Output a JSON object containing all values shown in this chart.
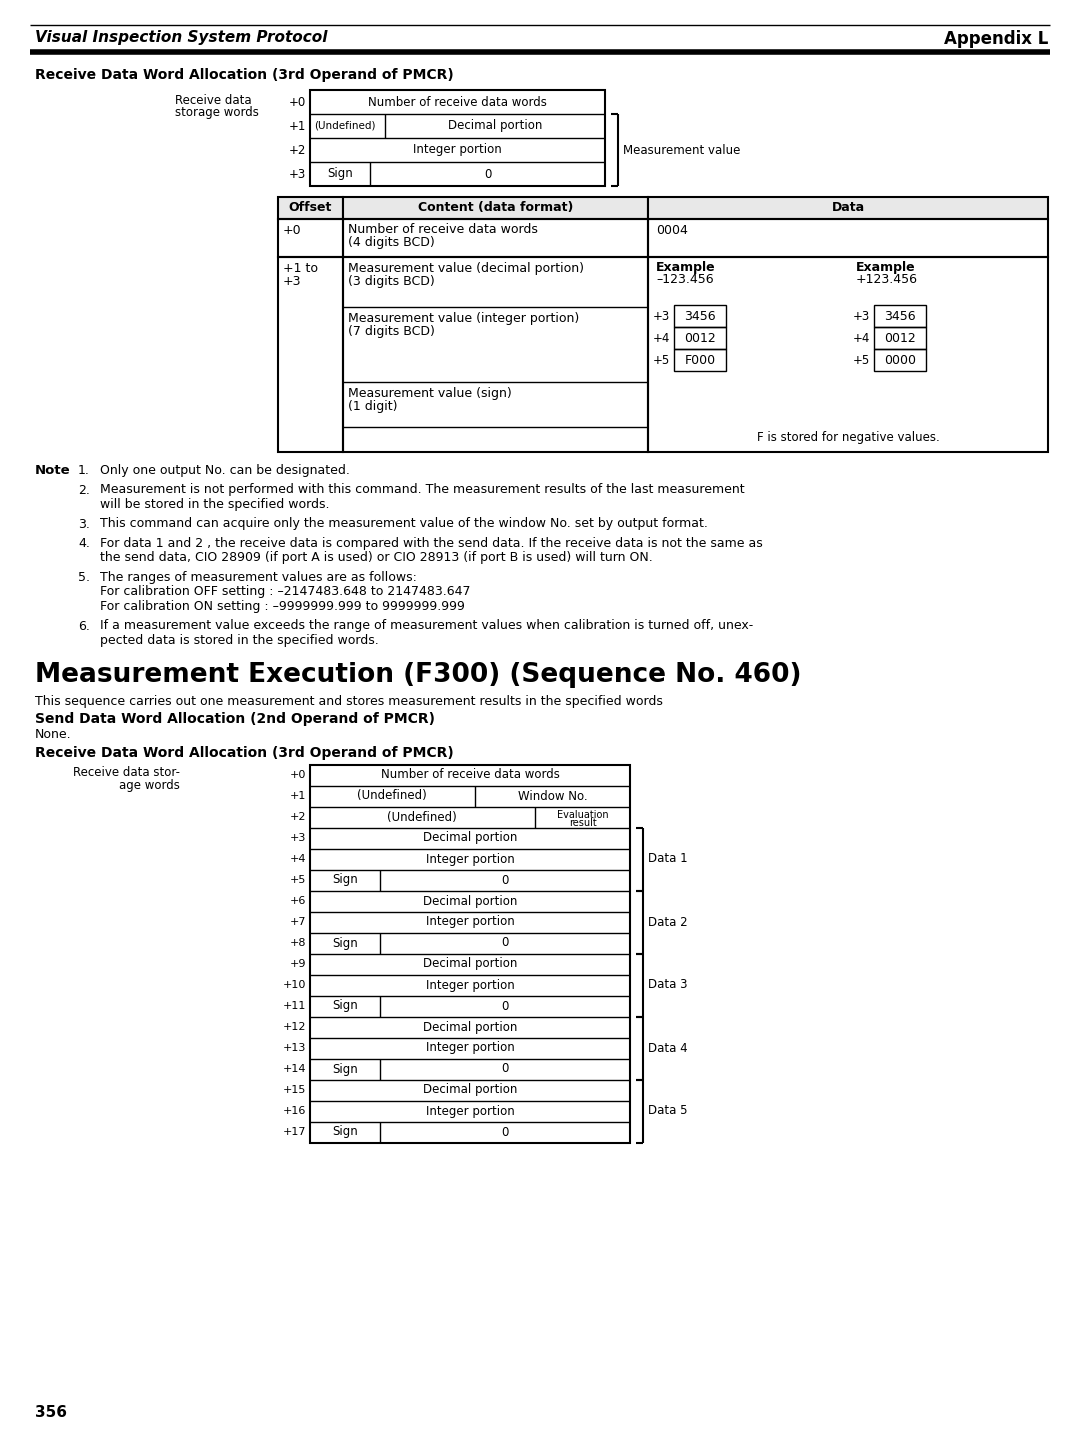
{
  "page_title_left": "Visual Inspection System Protocol",
  "page_title_right": "Appendix L",
  "section1_title": "Receive Data Word Allocation (3rd Operand of PMCR)",
  "section2_title": "Measurement Execution (F300) (Sequence No. 460)",
  "section2_desc": "This sequence carries out one measurement and stores measurement results in the specified words",
  "section3_title": "Send Data Word Allocation (2nd Operand of PMCR)",
  "section3_none": "None.",
  "section4_title": "Receive Data Word Allocation (3rd Operand of PMCR)",
  "notes": [
    "Only one output No. can be designated.",
    "Measurement is not performed with this command. The measurement results of the last measurement\nwill be stored in the specified words.",
    "This command can acquire only the measurement value of the window No. set by output format.",
    "For data 1 and 2 , the receive data is compared with the send data. If the receive data is not the same as\nthe send data, CIO 28909 (if port A is used) or CIO 28913 (if port B is used) will turn ON.",
    "The ranges of measurement values are as follows:\nFor calibration OFF setting : –2147483.648 to 2147483.647\nFor calibration ON setting : –9999999.999 to 9999999.999",
    "If a measurement value exceeds the range of measurement values when calibration is turned off, unex-\npected data is stored in the specified words."
  ],
  "page_number": "356",
  "bg_color": "#ffffff"
}
